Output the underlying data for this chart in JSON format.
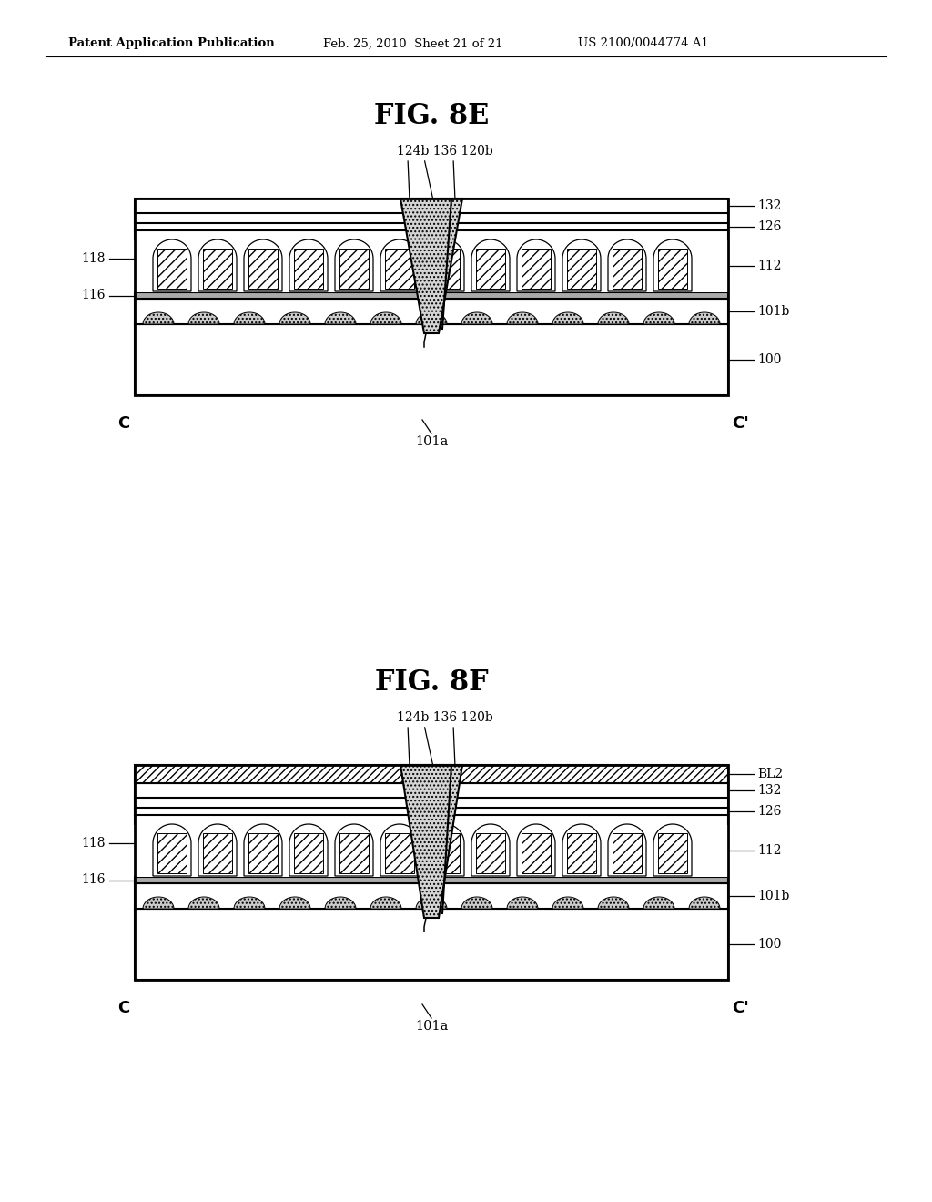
{
  "page_width": 10.24,
  "page_height": 13.2,
  "bg_color": "#ffffff",
  "lw": 1.5,
  "fig1_title": "FIG. 8E",
  "fig2_title": "FIG. 8F",
  "header_left": "Patent Application Publication",
  "header_mid": "Feb. 25, 2010  Sheet 21 of 21",
  "header_right": "US 2100/0044774 A1"
}
